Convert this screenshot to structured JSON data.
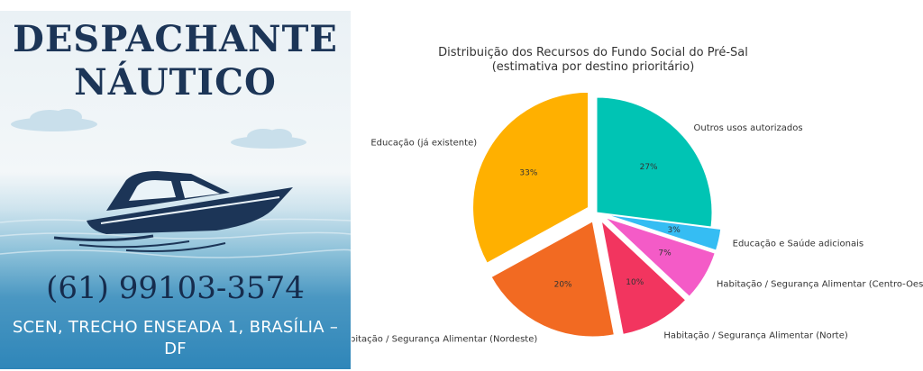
{
  "ad": {
    "title_line1": "DESPACHANTE",
    "title_line2": "NÁUTICO",
    "phone": "(61) 99103-3574",
    "address": "SCEN, TRECHO ENSEADA 1, BRASÍLIA – DF",
    "colors": {
      "title": "#1c3557",
      "boat": "#1c3557",
      "sea": "#2f86b9"
    }
  },
  "chart_data": {
    "type": "pie",
    "title": "Distribuição dos Recursos do Fundo Social do Pré-Sal",
    "subtitle": "(estimativa por destino prioritário)",
    "slices": [
      {
        "label": "Outros usos autorizados",
        "value": 27,
        "pct_label": "27%",
        "color": "#00c4b4",
        "exploded": false
      },
      {
        "label": "Educação e Saúde adicionais",
        "value": 3,
        "pct_label": "3%",
        "color": "#35bdf3",
        "exploded": true
      },
      {
        "label": "Habitação / Segurança Alimentar (Centro-Oeste)",
        "value": 7,
        "pct_label": "7%",
        "color": "#f45bc7",
        "exploded": true
      },
      {
        "label": "Habitação / Segurança Alimentar (Norte)",
        "value": 10,
        "pct_label": "10%",
        "color": "#f2355f",
        "exploded": true
      },
      {
        "label": "Habitação / Segurança Alimentar (Nordeste)",
        "value": 20,
        "pct_label": "20%",
        "color": "#f26a22",
        "exploded": true
      },
      {
        "label": "Educação (já existente)",
        "value": 33,
        "pct_label": "33%",
        "color": "#ffb000",
        "exploded": true
      }
    ]
  }
}
